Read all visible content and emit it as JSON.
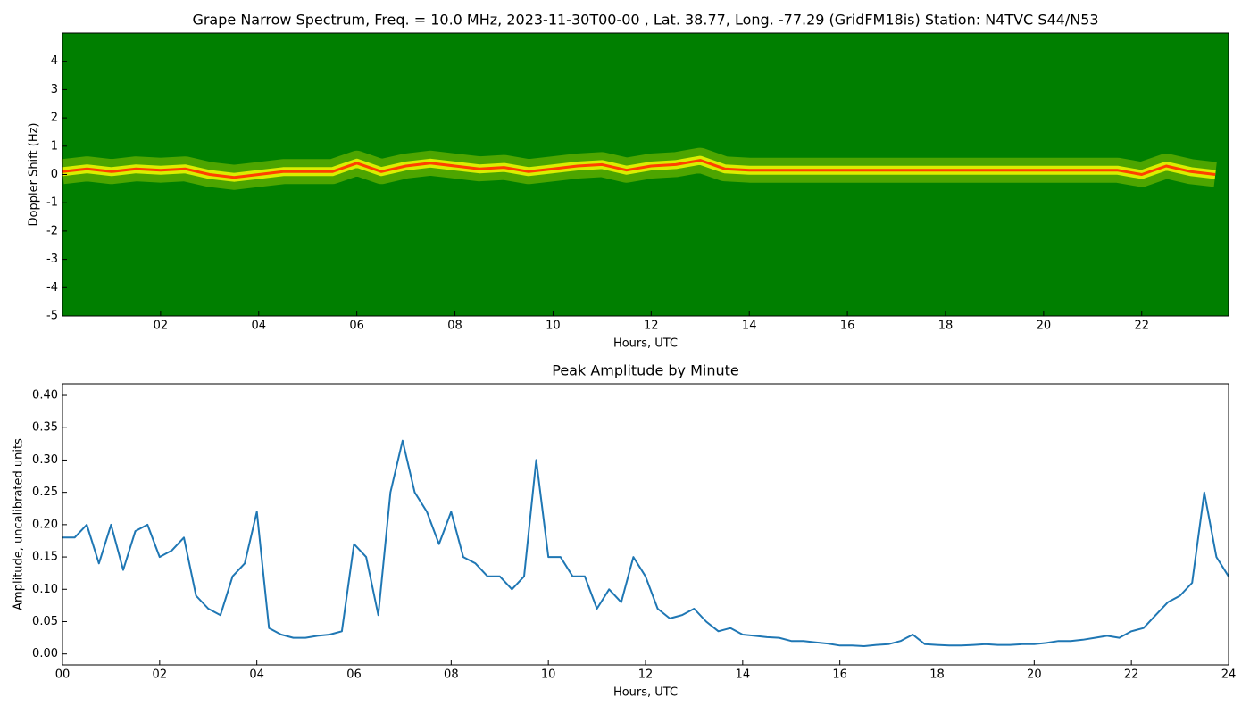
{
  "chart_data": [
    {
      "type": "spectrogram",
      "title": "Grape Narrow Spectrum, Freq. = 10.0 MHz, 2023-11-30T00-00 , Lat.  38.77, Long. -77.29 (GridFM18is) Station: N4TVC S44/N53",
      "xlabel": "Hours, UTC",
      "ylabel": "Doppler Shift (Hz)",
      "background": "#007f00",
      "color": "#ffff00",
      "peak_color": "#ff4000",
      "x": [
        0,
        0.5,
        1,
        1.5,
        2,
        2.5,
        3,
        3.5,
        4,
        4.5,
        5,
        5.5,
        6,
        6.5,
        7,
        7.5,
        8,
        8.5,
        9,
        9.5,
        10,
        10.5,
        11,
        11.5,
        12,
        12.5,
        13,
        13.5,
        14,
        14.5,
        15,
        15.5,
        16,
        16.5,
        17,
        17.5,
        18,
        18.5,
        19,
        19.5,
        20,
        20.5,
        21,
        21.5,
        22,
        22.5,
        23,
        23.5
      ],
      "values": [
        0.1,
        0.2,
        0.1,
        0.2,
        0.15,
        0.2,
        0,
        -0.1,
        0,
        0.1,
        0.1,
        0.1,
        0.4,
        0.1,
        0.3,
        0.4,
        0.3,
        0.2,
        0.25,
        0.1,
        0.2,
        0.3,
        0.35,
        0.15,
        0.3,
        0.35,
        0.5,
        0.2,
        0.15,
        0.15,
        0.15,
        0.15,
        0.15,
        0.15,
        0.15,
        0.15,
        0.15,
        0.15,
        0.15,
        0.15,
        0.15,
        0.15,
        0.15,
        0.15,
        0,
        0.3,
        0.1,
        0
      ],
      "xlim": [
        0,
        23.77
      ],
      "ylim": [
        -5,
        5
      ],
      "xticks": [
        {
          "value": 2,
          "label": "02"
        },
        {
          "value": 4,
          "label": "04"
        },
        {
          "value": 6,
          "label": "06"
        },
        {
          "value": 8,
          "label": "08"
        },
        {
          "value": 10,
          "label": "10"
        },
        {
          "value": 12,
          "label": "12"
        },
        {
          "value": 14,
          "label": "14"
        },
        {
          "value": 16,
          "label": "16"
        },
        {
          "value": 18,
          "label": "18"
        },
        {
          "value": 20,
          "label": "20"
        },
        {
          "value": 22,
          "label": "22"
        }
      ],
      "yticks": [
        -5,
        -4,
        -3,
        -2,
        -1,
        0,
        1,
        2,
        3,
        4
      ]
    },
    {
      "type": "line",
      "title": "Peak Amplitude by Minute",
      "xlabel": "Hours, UTC",
      "ylabel": "Amplitude, uncalibrated units",
      "color": "#1f77b4",
      "x": [
        0,
        0.25,
        0.5,
        0.75,
        1,
        1.25,
        1.5,
        1.75,
        2,
        2.25,
        2.5,
        2.75,
        3,
        3.25,
        3.5,
        3.75,
        4,
        4.25,
        4.5,
        4.75,
        5,
        5.25,
        5.5,
        5.75,
        6,
        6.25,
        6.5,
        6.75,
        7,
        7.25,
        7.5,
        7.75,
        8,
        8.25,
        8.5,
        8.75,
        9,
        9.25,
        9.5,
        9.75,
        10,
        10.25,
        10.5,
        10.75,
        11,
        11.25,
        11.5,
        11.75,
        12,
        12.25,
        12.5,
        12.75,
        13,
        13.25,
        13.5,
        13.75,
        14,
        14.25,
        14.5,
        14.75,
        15,
        15.25,
        15.5,
        15.75,
        16,
        16.25,
        16.5,
        16.75,
        17,
        17.25,
        17.5,
        17.75,
        18,
        18.25,
        18.5,
        18.75,
        19,
        19.25,
        19.5,
        19.75,
        20,
        20.25,
        20.5,
        20.75,
        21,
        21.25,
        21.5,
        21.75,
        22,
        22.25,
        22.5,
        22.75,
        23,
        23.25,
        23.5,
        23.75,
        24
      ],
      "values": [
        0.18,
        0.18,
        0.2,
        0.14,
        0.2,
        0.13,
        0.19,
        0.2,
        0.15,
        0.16,
        0.18,
        0.09,
        0.07,
        0.06,
        0.12,
        0.14,
        0.22,
        0.04,
        0.03,
        0.025,
        0.025,
        0.028,
        0.03,
        0.035,
        0.17,
        0.15,
        0.06,
        0.25,
        0.33,
        0.25,
        0.22,
        0.17,
        0.22,
        0.15,
        0.14,
        0.12,
        0.12,
        0.1,
        0.12,
        0.3,
        0.15,
        0.15,
        0.12,
        0.12,
        0.07,
        0.1,
        0.08,
        0.15,
        0.12,
        0.07,
        0.055,
        0.06,
        0.07,
        0.05,
        0.035,
        0.04,
        0.03,
        0.028,
        0.026,
        0.025,
        0.02,
        0.02,
        0.018,
        0.016,
        0.013,
        0.013,
        0.012,
        0.014,
        0.015,
        0.02,
        0.03,
        0.015,
        0.014,
        0.013,
        0.013,
        0.014,
        0.015,
        0.014,
        0.014,
        0.015,
        0.015,
        0.017,
        0.02,
        0.02,
        0.022,
        0.025,
        0.028,
        0.025,
        0.035,
        0.04,
        0.06,
        0.08,
        0.09,
        0.11,
        0.25,
        0.15,
        0.12
      ],
      "xlim": [
        0,
        24
      ],
      "ylim": [
        -0.017,
        0.418
      ],
      "xticks": [
        {
          "value": 0,
          "label": "00"
        },
        {
          "value": 2,
          "label": "02"
        },
        {
          "value": 4,
          "label": "04"
        },
        {
          "value": 6,
          "label": "06"
        },
        {
          "value": 8,
          "label": "08"
        },
        {
          "value": 10,
          "label": "10"
        },
        {
          "value": 12,
          "label": "12"
        },
        {
          "value": 14,
          "label": "14"
        },
        {
          "value": 16,
          "label": "16"
        },
        {
          "value": 18,
          "label": "18"
        },
        {
          "value": 20,
          "label": "20"
        },
        {
          "value": 22,
          "label": "22"
        },
        {
          "value": 24,
          "label": "24"
        }
      ],
      "yticks": [
        {
          "value": 0,
          "label": "0.00"
        },
        {
          "value": 0.05,
          "label": "0.05"
        },
        {
          "value": 0.1,
          "label": "0.10"
        },
        {
          "value": 0.15,
          "label": "0.15"
        },
        {
          "value": 0.2,
          "label": "0.20"
        },
        {
          "value": 0.25,
          "label": "0.25"
        },
        {
          "value": 0.3,
          "label": "0.30"
        },
        {
          "value": 0.35,
          "label": "0.35"
        },
        {
          "value": 0.4,
          "label": "0.40"
        }
      ]
    }
  ]
}
